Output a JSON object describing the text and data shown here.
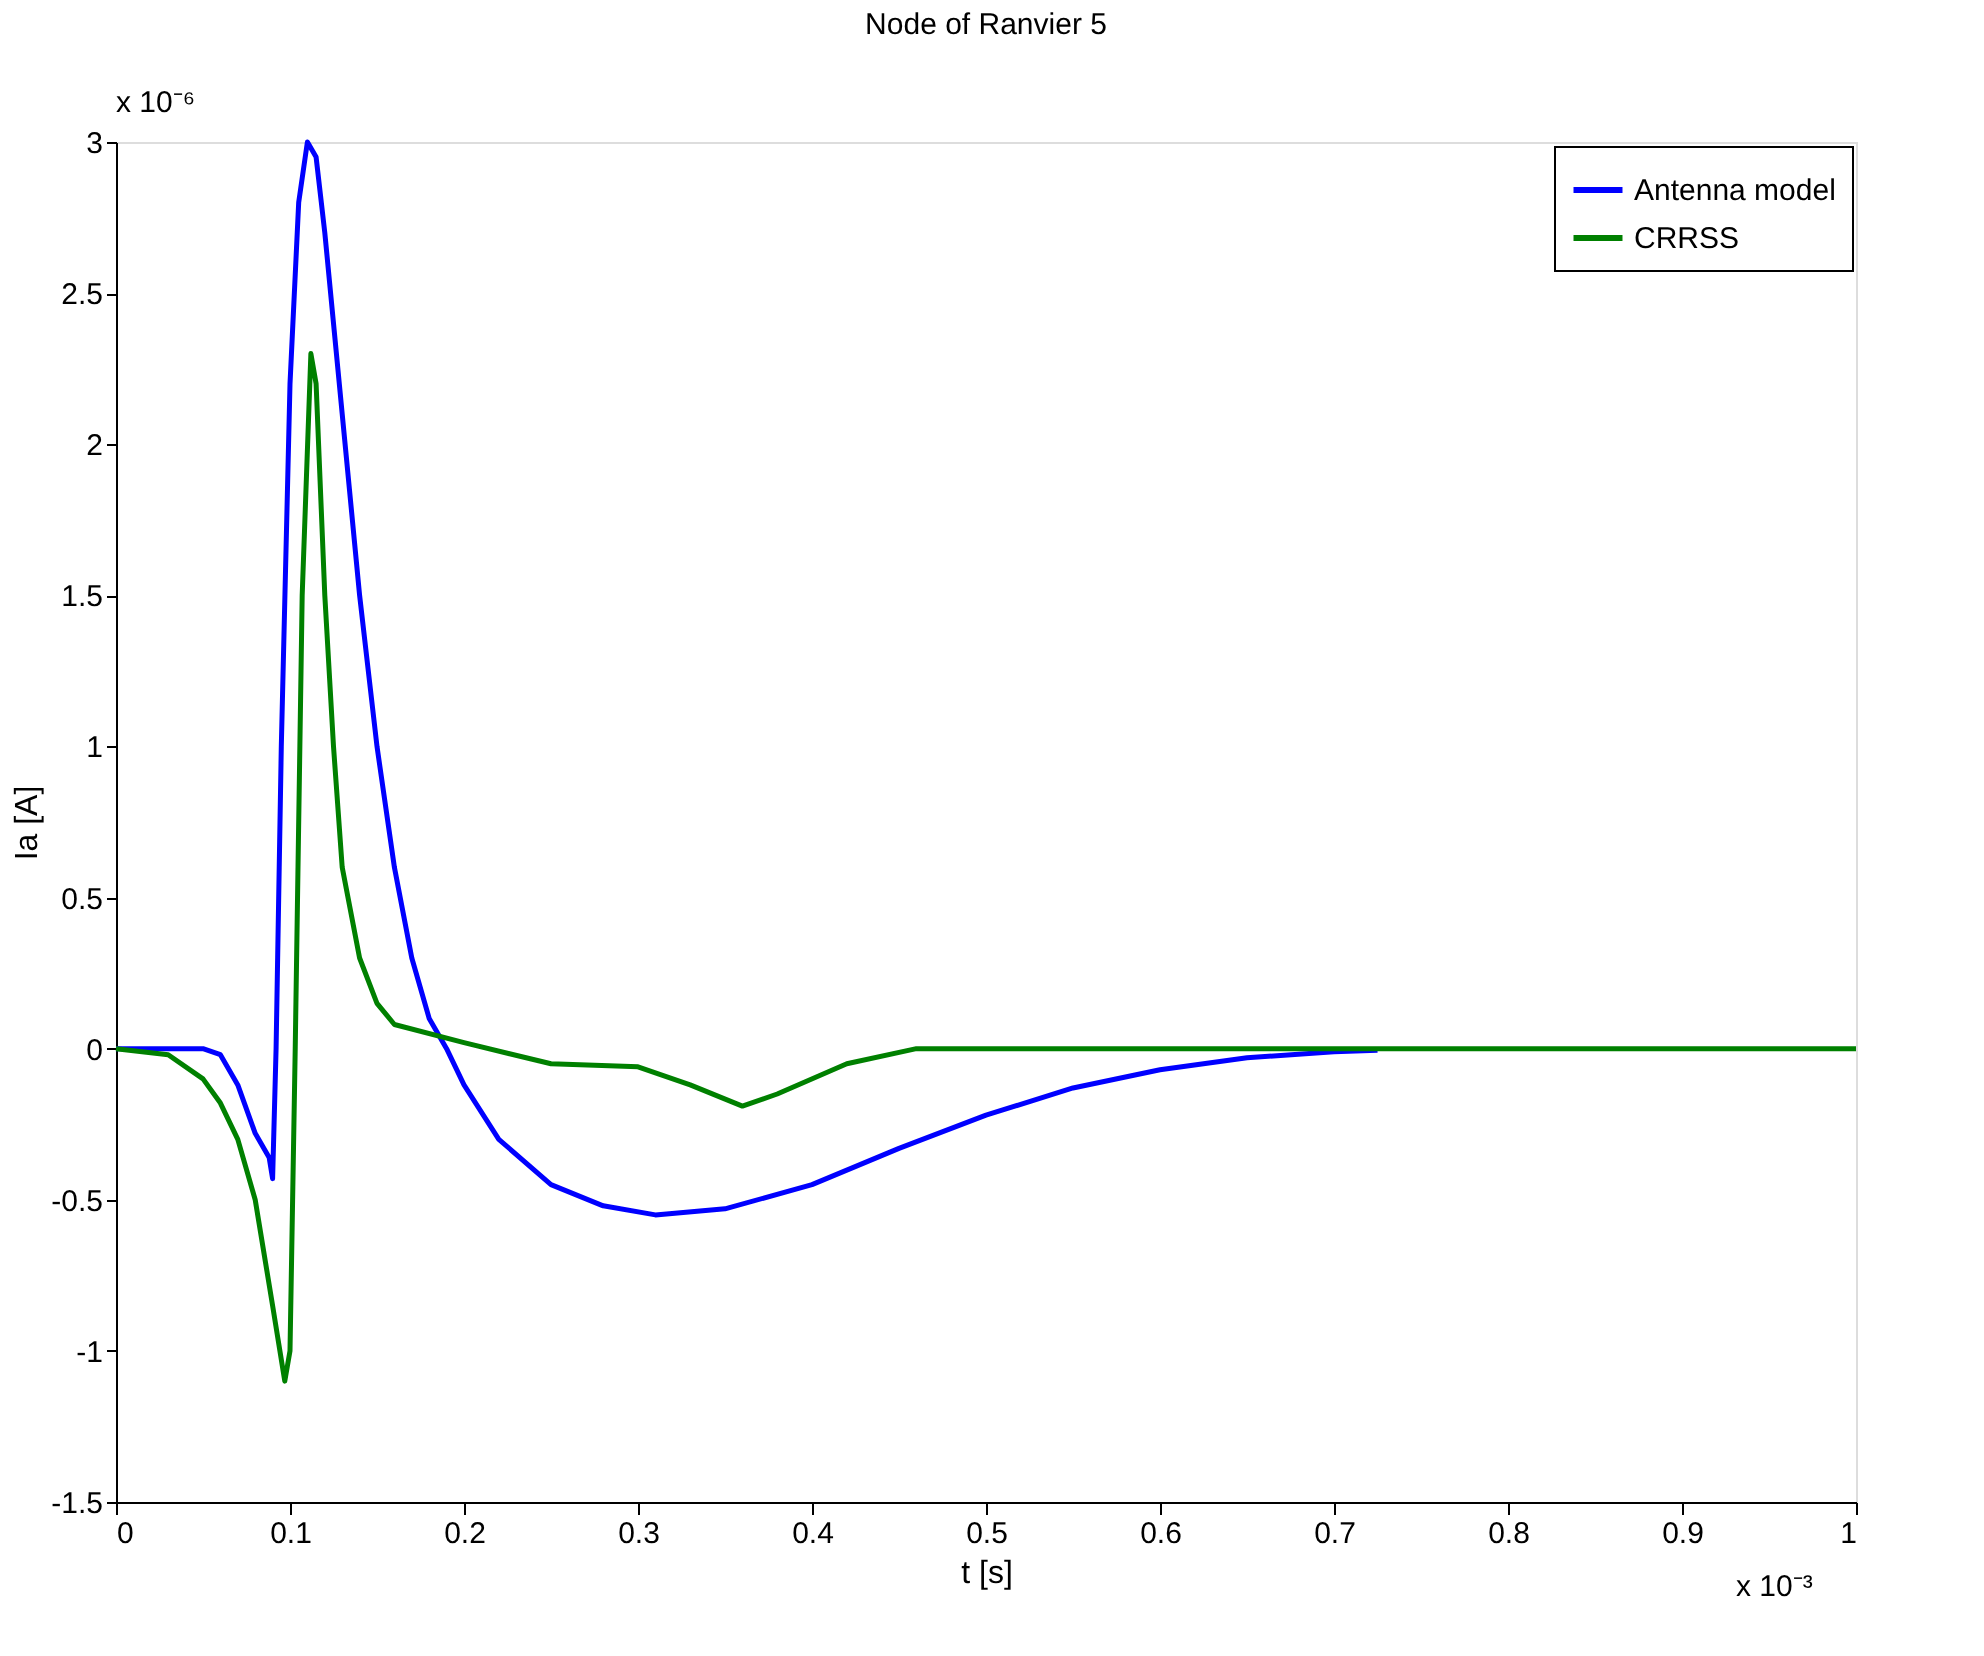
{
  "chart_data": {
    "type": "line",
    "title": "Node of Ranvier 5",
    "xlabel": "t [s]",
    "ylabel": "Ia [A]",
    "annotations": [
      "x 10⁻⁶",
      "x 10⁻³"
    ],
    "xlim": [
      0,
      1
    ],
    "xticks": [
      0,
      0.1,
      0.2,
      0.3,
      0.4,
      0.5,
      0.6,
      0.7,
      0.8,
      0.9,
      1
    ],
    "ylim": [
      -1.5,
      3
    ],
    "yticks": [
      -1.5,
      -1,
      -0.5,
      0,
      0.5,
      1,
      1.5,
      2,
      2.5,
      3
    ],
    "grid": false,
    "legend": "top right",
    "line_style": "solid",
    "series": [
      {
        "name": "Antenna model",
        "color": "#0000ff",
        "x": [
          0,
          0.05,
          0.06,
          0.07,
          0.08,
          0.088,
          0.09,
          0.092,
          0.095,
          0.1,
          0.105,
          0.11,
          0.115,
          0.12,
          0.13,
          0.14,
          0.15,
          0.16,
          0.17,
          0.18,
          0.19,
          0.2,
          0.22,
          0.25,
          0.28,
          0.31,
          0.35,
          0.4,
          0.45,
          0.5,
          0.55,
          0.6,
          0.65,
          0.7,
          0.725
        ],
        "values": [
          0,
          0,
          -0.02,
          -0.12,
          -0.28,
          -0.36,
          -0.43,
          0,
          1.0,
          2.2,
          2.8,
          3.0,
          2.95,
          2.7,
          2.1,
          1.5,
          1.0,
          0.6,
          0.3,
          0.1,
          0.0,
          -0.12,
          -0.3,
          -0.45,
          -0.52,
          -0.55,
          -0.53,
          -0.45,
          -0.33,
          -0.22,
          -0.13,
          -0.07,
          -0.03,
          -0.01,
          -0.005
        ]
      },
      {
        "name": "CRRSS",
        "color": "#008000",
        "x": [
          0,
          0.03,
          0.05,
          0.06,
          0.07,
          0.08,
          0.09,
          0.097,
          0.1,
          0.103,
          0.107,
          0.112,
          0.115,
          0.12,
          0.125,
          0.13,
          0.14,
          0.15,
          0.16,
          0.2,
          0.25,
          0.3,
          0.33,
          0.36,
          0.38,
          0.42,
          0.46,
          1
        ],
        "values": [
          0,
          -0.02,
          -0.1,
          -0.18,
          -0.3,
          -0.5,
          -0.85,
          -1.1,
          -1.0,
          0,
          1.5,
          2.3,
          2.2,
          1.5,
          1.0,
          0.6,
          0.3,
          0.15,
          0.08,
          0.02,
          -0.05,
          -0.06,
          -0.12,
          -0.19,
          -0.15,
          -0.05,
          0,
          0
        ]
      }
    ]
  }
}
